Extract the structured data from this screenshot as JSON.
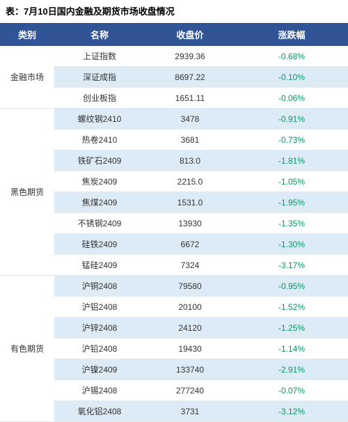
{
  "title": "表：7月10日国内金融及期货市场收盘情况",
  "columns": [
    "类别",
    "名称",
    "收盘价",
    "涨跌幅"
  ],
  "header_bg": "#305496",
  "header_fg": "#ffffff",
  "zebra_colors": [
    "#ffffff",
    "#ddebf7"
  ],
  "neg_color": "#009966",
  "pos_color": "#d83a3a",
  "groups": [
    {
      "category": "金融市场",
      "rows": [
        {
          "name": "上证指数",
          "price": "2939.36",
          "change": "-0.68%",
          "dir": "neg"
        },
        {
          "name": "深证成指",
          "price": "8697.22",
          "change": "-0.10%",
          "dir": "neg"
        },
        {
          "name": "创业板指",
          "price": "1651.11",
          "change": "-0.06%",
          "dir": "neg"
        }
      ]
    },
    {
      "category": "黑色期货",
      "rows": [
        {
          "name": "螺纹钢2410",
          "price": "3478",
          "change": "-0.91%",
          "dir": "neg"
        },
        {
          "name": "热卷2410",
          "price": "3681",
          "change": "-0.73%",
          "dir": "neg"
        },
        {
          "name": "铁矿石2409",
          "price": "813.0",
          "change": "-1.81%",
          "dir": "neg"
        },
        {
          "name": "焦炭2409",
          "price": "2215.0",
          "change": "-1.05%",
          "dir": "neg"
        },
        {
          "name": "焦煤2409",
          "price": "1531.0",
          "change": "-1.95%",
          "dir": "neg"
        },
        {
          "name": "不锈钢2409",
          "price": "13930",
          "change": "-1.35%",
          "dir": "neg"
        },
        {
          "name": "硅铁2409",
          "price": "6672",
          "change": "-1.30%",
          "dir": "neg"
        },
        {
          "name": "锰硅2409",
          "price": "7324",
          "change": "-3.17%",
          "dir": "neg"
        }
      ]
    },
    {
      "category": "有色期货",
      "rows": [
        {
          "name": "沪铜2408",
          "price": "79580",
          "change": "-0.95%",
          "dir": "neg"
        },
        {
          "name": "沪铝2408",
          "price": "20100",
          "change": "-1.52%",
          "dir": "neg"
        },
        {
          "name": "沪锌2408",
          "price": "24120",
          "change": "-1.25%",
          "dir": "neg"
        },
        {
          "name": "沪铅2408",
          "price": "19430",
          "change": "-1.14%",
          "dir": "neg"
        },
        {
          "name": "沪镍2409",
          "price": "133740",
          "change": "-2.91%",
          "dir": "neg"
        },
        {
          "name": "沪锡2408",
          "price": "277240",
          "change": "-0.07%",
          "dir": "neg"
        },
        {
          "name": "氧化铝2408",
          "price": "3731",
          "change": "-3.12%",
          "dir": "neg"
        }
      ]
    }
  ]
}
